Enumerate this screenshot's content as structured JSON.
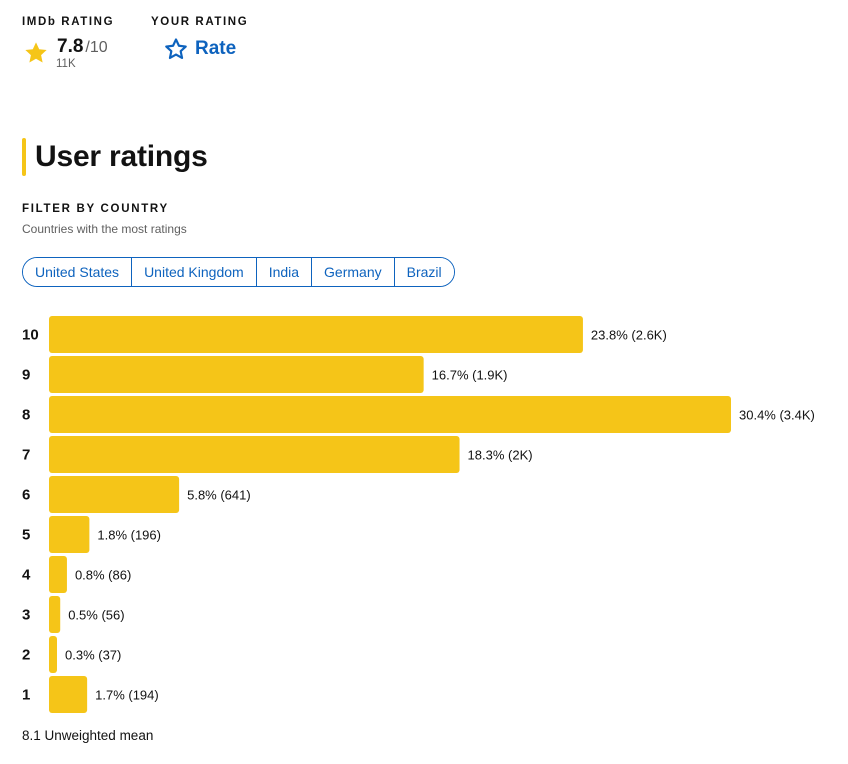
{
  "imdb_rating": {
    "label": "IMDb RATING",
    "score": "7.8",
    "max": "/10",
    "count": "11K",
    "icon": "star-icon",
    "star_color": "#f5c518"
  },
  "your_rating": {
    "label": "YOUR RATING",
    "button_label": "Rate",
    "icon": "star-outline-icon",
    "color": "#0e63be"
  },
  "section": {
    "title": "User ratings",
    "accent": "#f5c518"
  },
  "filter": {
    "label": "FILTER BY COUNTRY",
    "subtitle": "Countries with the most ratings",
    "countries": [
      "United States",
      "United Kingdom",
      "India",
      "Germany",
      "Brazil"
    ]
  },
  "chart_data": {
    "type": "bar",
    "orientation": "horizontal",
    "categories": [
      "10",
      "9",
      "8",
      "7",
      "6",
      "5",
      "4",
      "3",
      "2",
      "1"
    ],
    "values": [
      23.8,
      16.7,
      30.4,
      18.3,
      5.8,
      1.8,
      0.8,
      0.5,
      0.3,
      1.7
    ],
    "labels": [
      "23.8% (2.6K)",
      "16.7% (1.9K)",
      "30.4% (3.4K)",
      "18.3% (2K)",
      "5.8% (641)",
      "1.8% (196)",
      "0.8% (86)",
      "0.5% (56)",
      "0.3% (37)",
      "1.7% (194)"
    ],
    "bar_color": "#f5c518"
  },
  "mean": "8.1 Unweighted mean"
}
